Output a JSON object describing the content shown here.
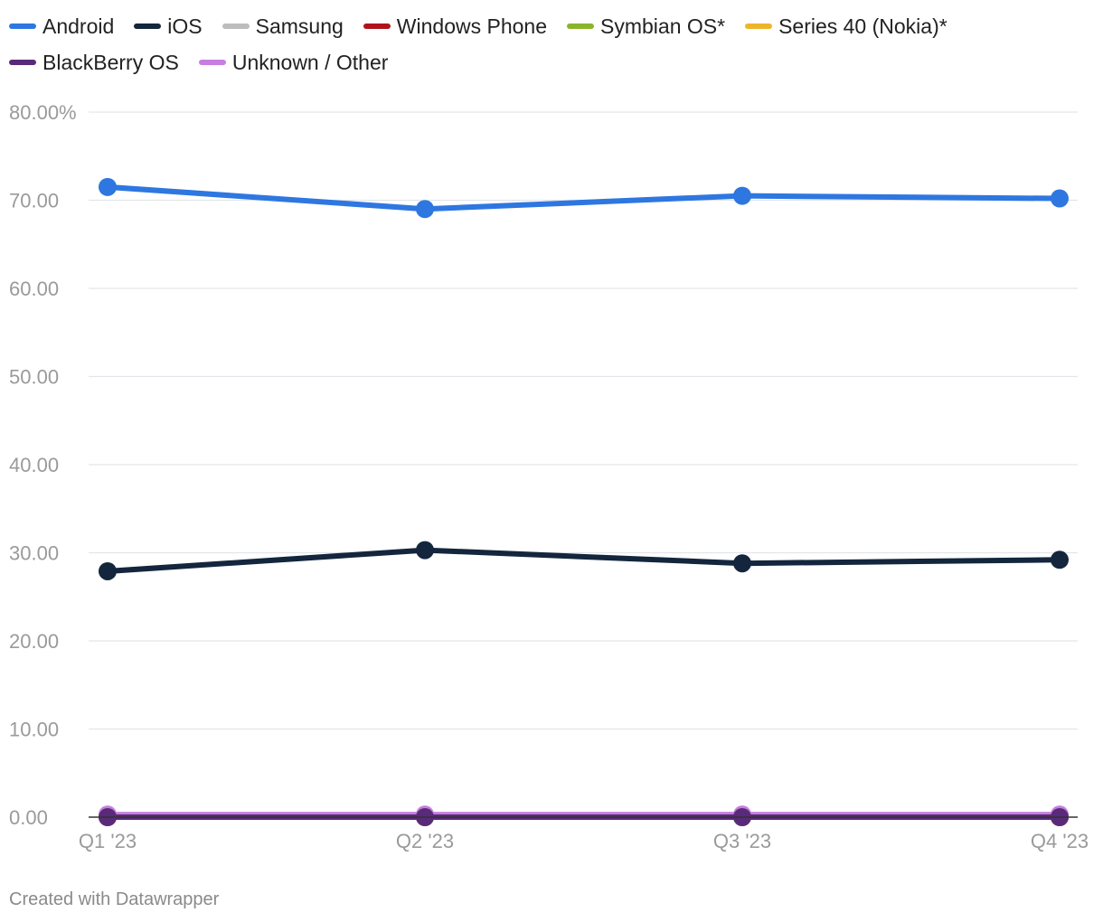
{
  "chart_data": {
    "type": "line",
    "title": "",
    "xlabel": "",
    "ylabel": "",
    "x": [
      "Q1 '23",
      "Q2 '23",
      "Q3 '23",
      "Q4 '23"
    ],
    "y_ticks": [
      "80.00%",
      "70.00",
      "60.00",
      "50.00",
      "40.00",
      "30.00",
      "20.00",
      "10.00",
      "0.00"
    ],
    "y_tick_values": [
      80,
      70,
      60,
      50,
      40,
      30,
      20,
      10,
      0
    ],
    "ylim": [
      0,
      80
    ],
    "grid": true,
    "legend_position": "top-left",
    "series": [
      {
        "name": "Android",
        "color": "#2e77e0",
        "values": [
          71.5,
          69.0,
          70.5,
          70.2
        ]
      },
      {
        "name": "iOS",
        "color": "#13263d",
        "values": [
          27.9,
          30.3,
          28.8,
          29.2
        ]
      },
      {
        "name": "Samsung",
        "color": "#bdbdbd",
        "values": [
          0.2,
          0.2,
          0.2,
          0.2
        ]
      },
      {
        "name": "Windows Phone",
        "color": "#b0141a",
        "values": [
          0.0,
          0.0,
          0.0,
          0.0
        ]
      },
      {
        "name": "Symbian OS*",
        "color": "#8ab52a",
        "values": [
          0.0,
          0.0,
          0.0,
          0.0
        ]
      },
      {
        "name": "Series 40 (Nokia)*",
        "color": "#edb52a",
        "values": [
          0.0,
          0.0,
          0.0,
          0.0
        ]
      },
      {
        "name": "BlackBerry OS",
        "color": "#5a2a7a",
        "values": [
          0.0,
          0.0,
          0.0,
          0.0
        ]
      },
      {
        "name": "Unknown / Other",
        "color": "#c77ee0",
        "values": [
          0.3,
          0.3,
          0.3,
          0.3
        ]
      }
    ]
  },
  "legend_rows": [
    [
      0,
      1,
      2,
      3,
      4,
      5
    ],
    [
      6,
      7
    ]
  ],
  "footer": {
    "credit": "Created with Datawrapper"
  }
}
